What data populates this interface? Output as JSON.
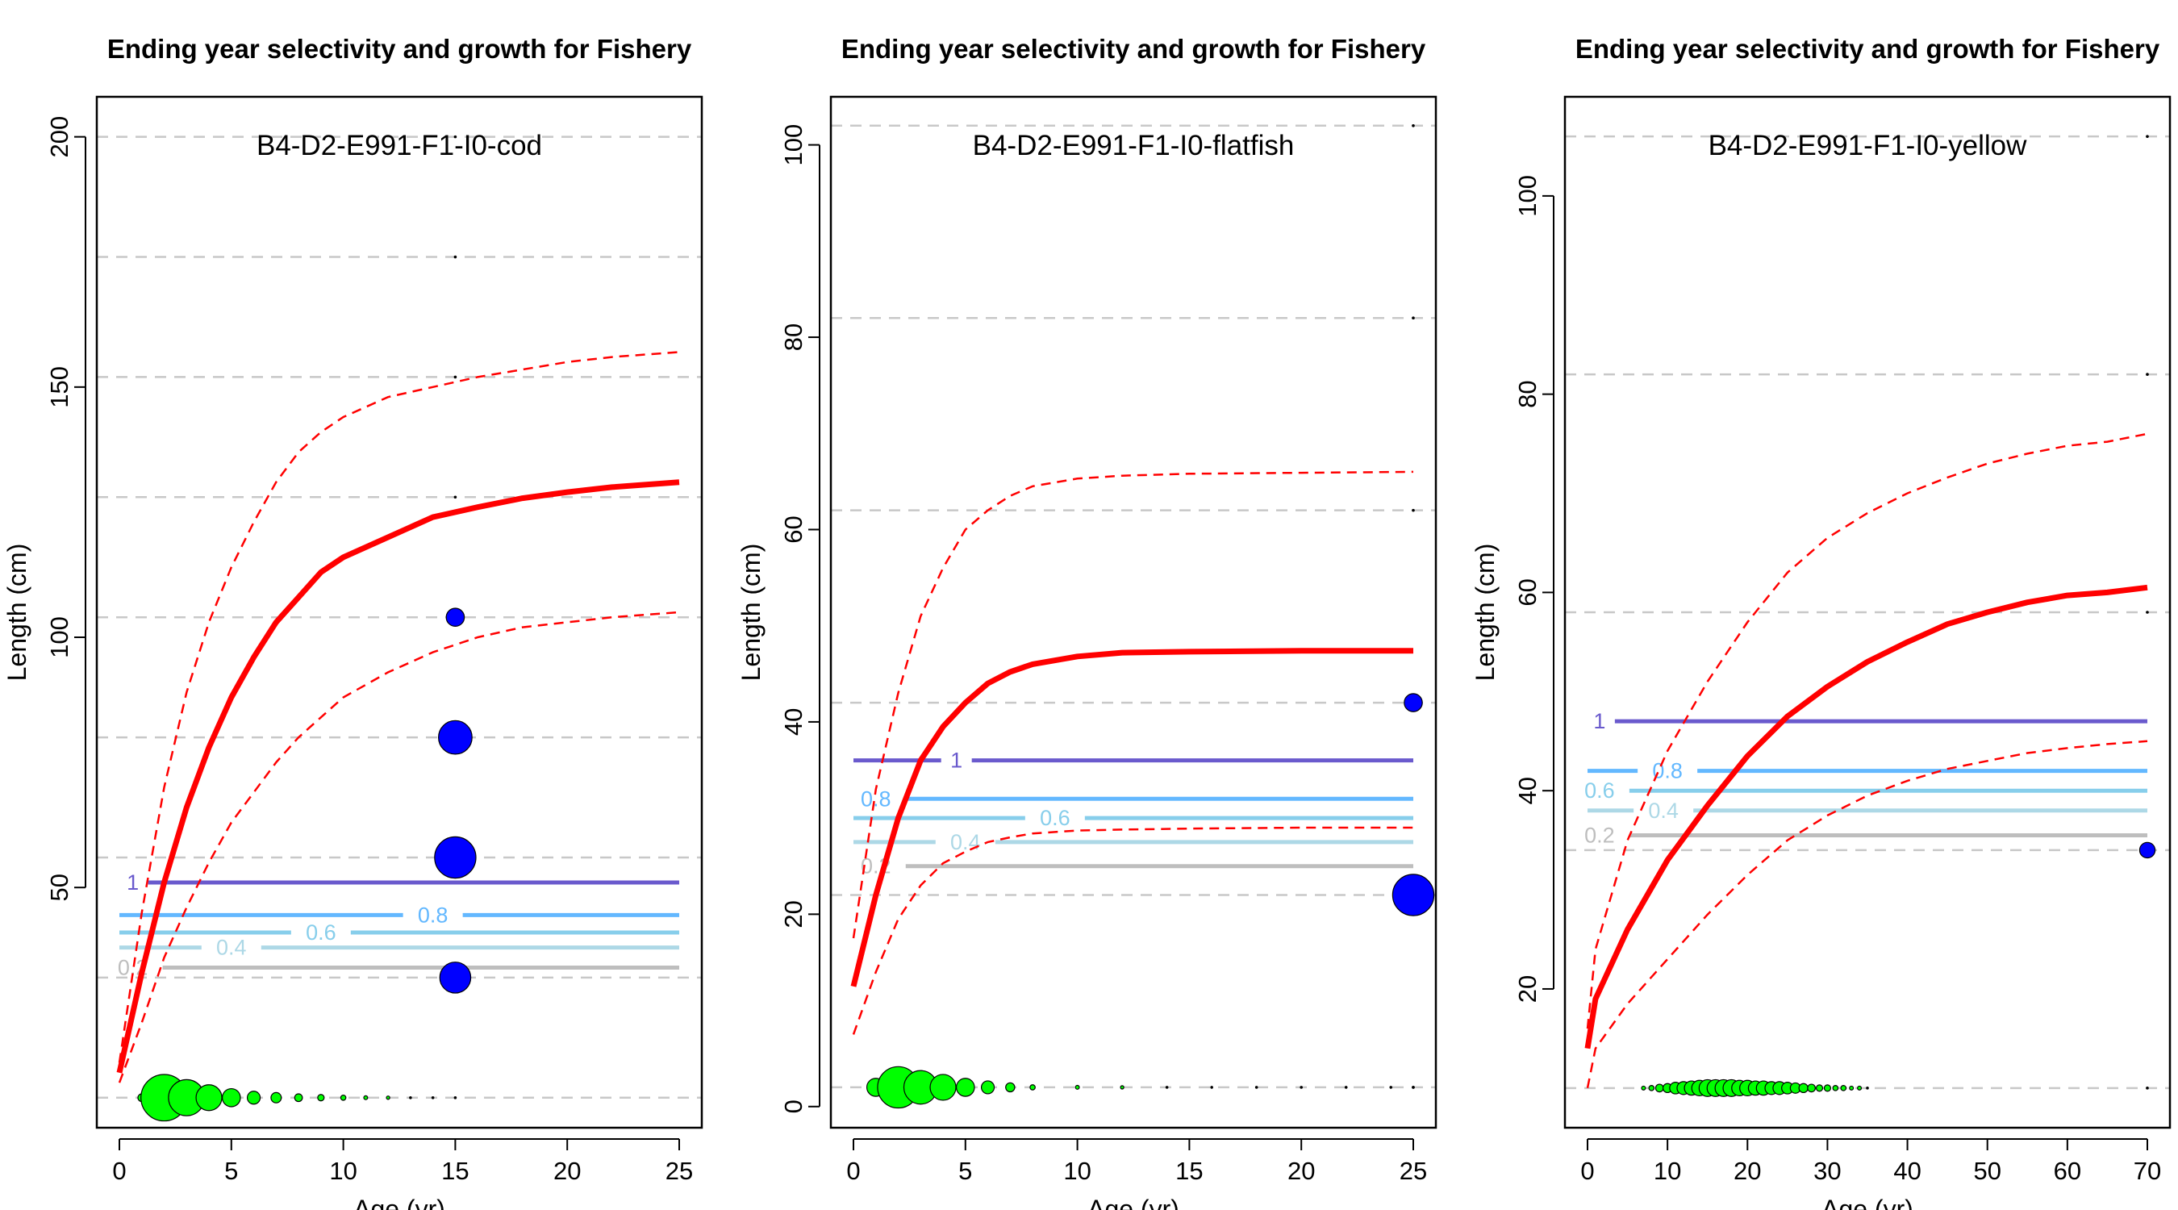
{
  "colors": {
    "growth": "#ff0000",
    "ref": "#c8c8c8",
    "age_bubble": "#00ff00",
    "length_bubble": "#0000ff",
    "contour_1": "#6a5acd",
    "contour_08": "#63b8ff",
    "contour_06": "#87ceeb",
    "contour_04": "#add8e6",
    "contour_02": "#bebebe"
  },
  "chart_data": [
    {
      "type": "line",
      "title": "Ending year selectivity and growth for Fishery",
      "subtitle": "B4-D2-E991-F1-I0-cod",
      "xlabel": "Age (yr)",
      "ylabel": "Length (cm)",
      "xlim": [
        0,
        25
      ],
      "ylim": [
        2,
        208
      ],
      "xticks": [
        "0",
        "5",
        "10",
        "15",
        "20",
        "25"
      ],
      "yticks": [
        "50",
        "100",
        "150",
        "200"
      ],
      "grid": false,
      "growth": {
        "age": [
          0,
          1,
          2,
          3,
          4,
          5,
          6,
          7,
          8,
          9,
          10,
          12,
          14,
          16,
          18,
          20,
          22,
          25
        ],
        "mean": [
          13,
          33,
          51,
          66,
          78,
          88,
          96,
          103,
          108,
          113,
          116,
          120,
          124,
          126,
          127.8,
          129,
          130,
          131
        ],
        "upper": [
          15,
          45,
          70,
          89,
          103,
          114,
          123,
          131,
          137,
          141,
          144,
          148,
          150,
          152,
          153.5,
          155,
          156,
          157
        ],
        "lower": [
          11,
          23,
          36,
          46,
          55,
          63,
          69,
          75,
          80,
          84,
          88,
          93,
          97,
          100,
          102,
          103,
          104,
          105
        ]
      },
      "ref_lengths": [
        200,
        176,
        152,
        128,
        104,
        80,
        56,
        32,
        8
      ],
      "selectivity_contours": [
        {
          "label": "1",
          "length": 51,
          "x_start": 1.2
        },
        {
          "label": "0.8",
          "length": 44.5,
          "x_start": 0
        },
        {
          "label": "0.6",
          "length": 41,
          "x_start": 0
        },
        {
          "label": "0.4",
          "length": 38,
          "x_start": 0
        },
        {
          "label": "0.2",
          "length": 34,
          "x_start": 0.5
        }
      ],
      "contour_label_x": {
        "1": 0.6,
        "0.8": 14,
        "0.6": 9,
        "0.4": 5,
        "0.2": 0.6
      },
      "age_bubbles": {
        "age": [
          1,
          2,
          3,
          4,
          5,
          6,
          7,
          8,
          9,
          10,
          11,
          12,
          13,
          14,
          15
        ],
        "size": [
          3,
          18,
          14,
          10,
          7,
          5,
          4,
          3,
          2.5,
          2,
          1.5,
          1.3,
          1.1,
          1,
          1
        ]
      },
      "length_bubbles": {
        "age": [
          15,
          15,
          15,
          15,
          15,
          15,
          15,
          15
        ],
        "length": [
          32,
          56,
          80,
          104,
          128,
          152,
          176,
          200
        ],
        "size": [
          12,
          16,
          13,
          7,
          1,
          1,
          1,
          1
        ]
      }
    },
    {
      "type": "line",
      "title": "Ending year selectivity and growth for Fishery",
      "subtitle": "B4-D2-E991-F1-I0-flatfish",
      "xlabel": "Age (yr)",
      "ylabel": "Length (cm)",
      "xlim": [
        0,
        25
      ],
      "ylim": [
        -2.2,
        105
      ],
      "xticks": [
        "0",
        "5",
        "10",
        "15",
        "20",
        "25"
      ],
      "yticks": [
        "0",
        "20",
        "40",
        "60",
        "80",
        "100"
      ],
      "grid": false,
      "growth": {
        "age": [
          0,
          1,
          2,
          3,
          4,
          5,
          6,
          7,
          8,
          10,
          12,
          15,
          20,
          25
        ],
        "mean": [
          12.5,
          22,
          30,
          36,
          39.5,
          42,
          44,
          45.2,
          46,
          46.8,
          47.2,
          47.3,
          47.4,
          47.4
        ],
        "upper": [
          17.5,
          33,
          43,
          51,
          56,
          60,
          62,
          63.5,
          64.5,
          65.3,
          65.6,
          65.8,
          65.9,
          66
        ],
        "lower": [
          7.5,
          14,
          19.5,
          23,
          25.3,
          26.5,
          27.5,
          28,
          28.4,
          28.7,
          28.8,
          28.9,
          29,
          29
        ]
      },
      "ref_lengths": [
        102,
        82,
        62,
        42,
        22,
        2
      ],
      "selectivity_contours": [
        {
          "label": "1",
          "length": 36,
          "x_start": 0
        },
        {
          "label": "0.8",
          "length": 32,
          "x_start": 0.3
        },
        {
          "label": "0.6",
          "length": 30,
          "x_start": 0
        },
        {
          "label": "0.4",
          "length": 27.5,
          "x_start": 0
        },
        {
          "label": "0.2",
          "length": 25,
          "x_start": 1
        }
      ],
      "contour_label_x": {
        "1": 4.6,
        "0.8": 1,
        "0.6": 9,
        "0.4": 5,
        "0.2": 1
      },
      "age_bubbles": {
        "age": [
          1,
          2,
          3,
          4,
          5,
          6,
          7,
          8,
          10,
          12,
          14,
          16,
          18,
          20,
          22,
          24,
          25
        ],
        "size": [
          7,
          16,
          13,
          10,
          7,
          5,
          3.5,
          2,
          1.5,
          1.3,
          1.1,
          1,
          1,
          1,
          1,
          1,
          1
        ]
      },
      "length_bubbles": {
        "age": [
          25,
          25,
          25,
          25,
          25,
          25
        ],
        "length": [
          22,
          42,
          62,
          82,
          102,
          2
        ],
        "size": [
          16,
          7,
          1,
          1,
          1,
          1
        ]
      }
    },
    {
      "type": "line",
      "title": "Ending year selectivity and growth for Fishery",
      "subtitle": "B4-D2-E991-F1-I0-yellow",
      "xlabel": "Age (yr)",
      "ylabel": "Length (cm)",
      "xlim": [
        0,
        70
      ],
      "ylim": [
        6,
        110
      ],
      "xticks": [
        "0",
        "10",
        "20",
        "30",
        "40",
        "50",
        "60",
        "70"
      ],
      "yticks": [
        "20",
        "40",
        "60",
        "80",
        "100"
      ],
      "grid": false,
      "growth": {
        "age": [
          0,
          1,
          5,
          10,
          15,
          20,
          25,
          30,
          35,
          40,
          45,
          50,
          55,
          60,
          65,
          70
        ],
        "mean": [
          14,
          19,
          26,
          33,
          38.5,
          43.5,
          47.5,
          50.5,
          53,
          55,
          56.8,
          58,
          59,
          59.7,
          60,
          60.5
        ],
        "upper": [
          16,
          24,
          35,
          44,
          51,
          57,
          62,
          65.5,
          68,
          70,
          71.6,
          73,
          74,
          74.8,
          75.2,
          76
        ],
        "lower": [
          10,
          14,
          18.5,
          23,
          27.5,
          31.5,
          35,
          37.5,
          39.5,
          41,
          42.2,
          43,
          43.8,
          44.3,
          44.7,
          45
        ]
      },
      "ref_lengths": [
        106,
        82,
        58,
        34,
        10
      ],
      "selectivity_contours": [
        {
          "label": "1",
          "length": 47,
          "x_start": 3
        },
        {
          "label": "0.8",
          "length": 42,
          "x_start": 0
        },
        {
          "label": "0.6",
          "length": 40,
          "x_start": 0
        },
        {
          "label": "0.4",
          "length": 38,
          "x_start": 0
        },
        {
          "label": "0.2",
          "length": 35.5,
          "x_start": 0
        }
      ],
      "contour_label_x": {
        "1": 1.5,
        "0.8": 10,
        "0.6": 1.5,
        "0.4": 9.5,
        "0.2": 1.5
      },
      "age_bubbles": {
        "age": [
          7,
          8,
          9,
          10,
          11,
          12,
          13,
          14,
          15,
          16,
          17,
          18,
          19,
          20,
          21,
          22,
          23,
          24,
          25,
          26,
          27,
          28,
          29,
          30,
          31,
          32,
          33,
          34,
          35
        ],
        "size": [
          1.5,
          2,
          3,
          3.5,
          4.5,
          5,
          5.5,
          6,
          6.5,
          6.5,
          6.5,
          6.5,
          6,
          6,
          5.5,
          5.5,
          5,
          5,
          4.5,
          4,
          3.5,
          3,
          2.5,
          2.5,
          2,
          2,
          1.5,
          1.5,
          1.2
        ]
      },
      "length_bubbles": {
        "age": [
          70,
          70,
          70,
          70,
          70
        ],
        "length": [
          34,
          58,
          82,
          106,
          10
        ],
        "size": [
          6,
          1,
          1,
          1,
          1
        ]
      }
    }
  ]
}
